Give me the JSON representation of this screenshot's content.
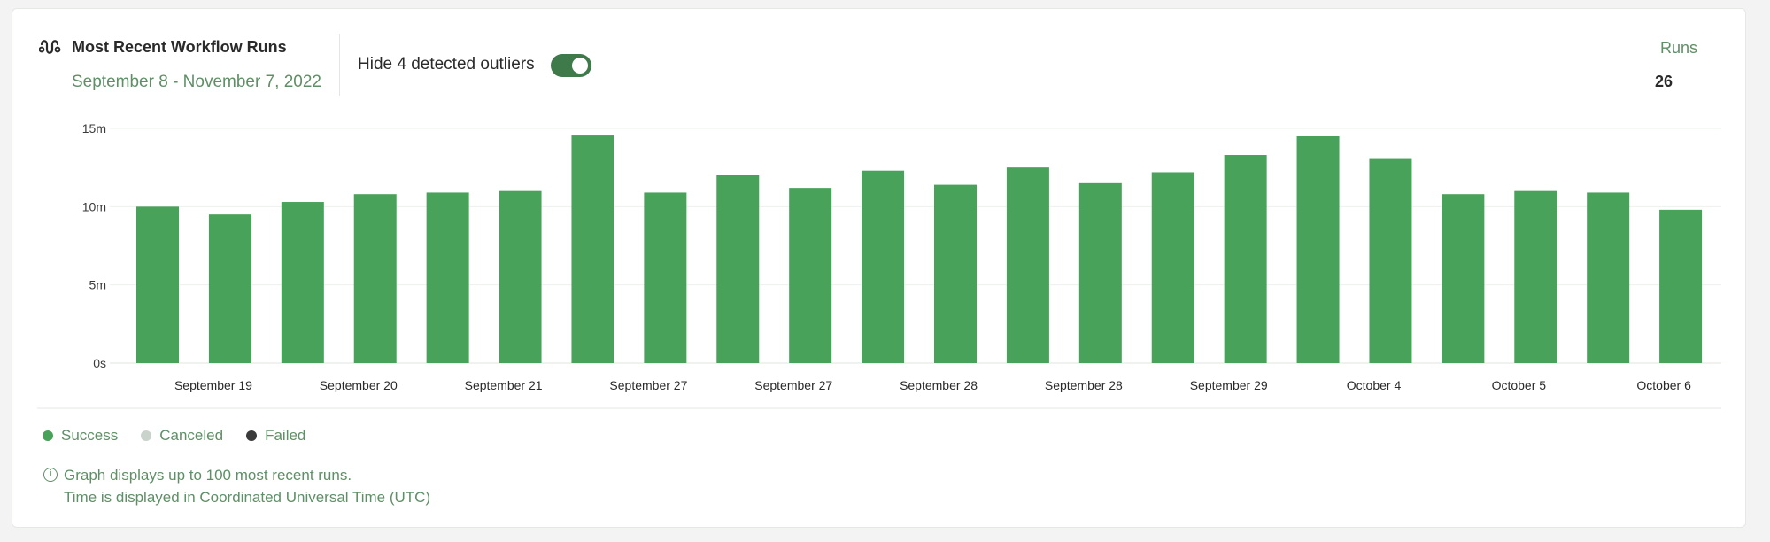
{
  "header": {
    "title": "Most Recent Workflow Runs",
    "date_range": "September 8 - November 7, 2022",
    "outlier_toggle_label": "Hide 4 detected outliers",
    "outlier_toggle_on": true,
    "stat_label": "Runs",
    "stat_value": "26"
  },
  "chart_data": {
    "type": "bar",
    "ylabel": "",
    "xlabel": "",
    "ylim": [
      0,
      15
    ],
    "y_unit": "minutes",
    "y_ticks": [
      "0s",
      "5m",
      "10m",
      "15m"
    ],
    "grid": true,
    "x_tick_labels": [
      "September 19",
      "September 20",
      "September 21",
      "September 27",
      "September 27",
      "September 28",
      "September 28",
      "September 29",
      "October 4",
      "October 5",
      "October 6"
    ],
    "values": [
      10.0,
      9.5,
      10.3,
      10.8,
      10.9,
      11.0,
      14.6,
      10.9,
      12.0,
      11.2,
      12.3,
      11.4,
      12.5,
      11.5,
      12.2,
      13.3,
      14.5,
      13.1,
      10.8,
      11.0,
      10.9,
      9.8
    ],
    "series": [
      {
        "name": "Success",
        "color": "#49a25a"
      }
    ],
    "legend_position": "bottom-left"
  },
  "legend": [
    {
      "label": "Success",
      "color": "#49a25a"
    },
    {
      "label": "Canceled",
      "color": "#c9d2cb"
    },
    {
      "label": "Failed",
      "color": "#3a3a3a"
    }
  ],
  "notes": {
    "line1": "Graph displays up to 100 most recent runs.",
    "line2": "Time is displayed in Coordinated Universal Time (UTC)"
  }
}
